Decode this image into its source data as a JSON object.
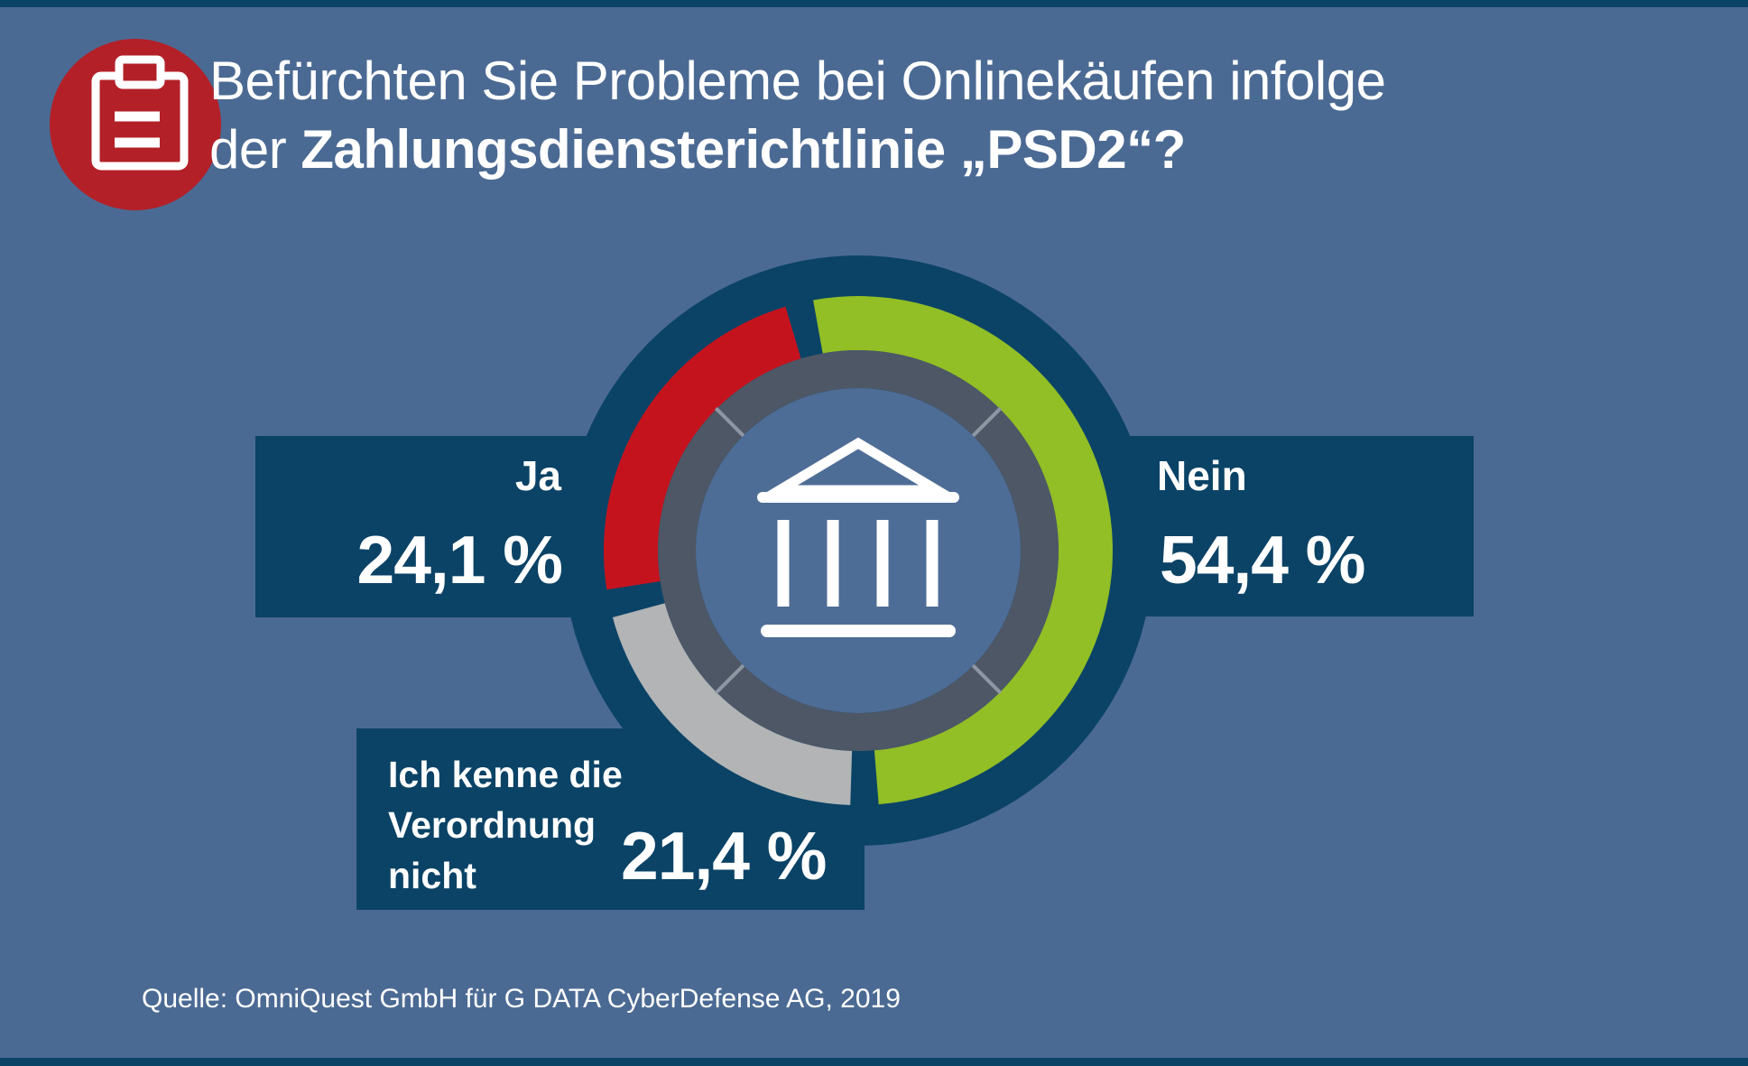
{
  "colors": {
    "background": "#4b6a93",
    "navy": "#0b4366",
    "badge_red": "#b32028",
    "segment_red": "#c5131d",
    "segment_green": "#92be26",
    "segment_gray": "#b2b4b6",
    "inner_ring_slate": "#4d5766",
    "inner_ring_divider": "#8e98a4",
    "center_disc": "#4e6d96",
    "text_white": "#ffffff"
  },
  "header": {
    "badge_icon": "clipboard-icon",
    "title": {
      "line1": "Befürchten Sie Probleme bei Onlinekäufen infolge",
      "line2_prefix": "der ",
      "line2_bold": "Zahlungsdiensterichtlinie „PSD2“?"
    }
  },
  "chart_data": {
    "type": "pie",
    "subtype": "donut",
    "title": "Befürchten Sie Probleme bei Onlinekäufen infolge der Zahlungsdiensterichtlinie „PSD2“?",
    "center_icon": "bank-icon",
    "rotation_deg": -10.2,
    "gap_deg": 6.4,
    "legend_position": "callout-bars",
    "segments": [
      {
        "label": "Nein",
        "value": 54.4,
        "display": "54,4 %",
        "color": "#92be26"
      },
      {
        "label": "Ich kenne die Verordnung nicht",
        "value": 21.4,
        "display": "21,4 %",
        "color": "#b2b4b6"
      },
      {
        "label": "Ja",
        "value": 24.1,
        "display": "24,1 %",
        "color": "#c5131d"
      }
    ]
  },
  "labels": {
    "ja": {
      "label": "Ja",
      "value": "24,1 %"
    },
    "nein": {
      "label": "Nein",
      "value": "54,4 %"
    },
    "unknown": {
      "lines": [
        "Ich kenne die",
        "Verordnung",
        "nicht"
      ],
      "value": "21,4 %"
    }
  },
  "source": {
    "text": "Quelle: OmniQuest GmbH für G DATA CyberDefense AG, 2019"
  }
}
